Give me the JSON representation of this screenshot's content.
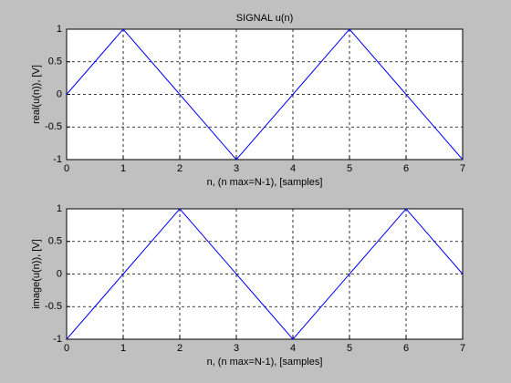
{
  "chart_data": [
    {
      "type": "line",
      "title": "SIGNAL u(n)",
      "x_label": "n, (n max=N-1), [samples]",
      "y_label": "real(u(n)), [V]",
      "x": [
        0,
        1,
        2,
        3,
        4,
        5,
        6,
        7
      ],
      "values": [
        0,
        1,
        0,
        -1,
        0,
        1,
        0,
        -1
      ],
      "color": "#0000ff",
      "xlim": [
        0,
        7
      ],
      "xticks": [
        0,
        1,
        2,
        3,
        4,
        5,
        6,
        7
      ],
      "ylim": [
        -1,
        1
      ],
      "yticks": [
        -1,
        -0.5,
        0,
        0.5,
        1
      ],
      "grid": true
    },
    {
      "type": "line",
      "x_label": "n, (n max=N-1), [samples]",
      "y_label": "image(u(n)), [V]",
      "x": [
        0,
        1,
        2,
        3,
        4,
        5,
        6,
        7
      ],
      "values": [
        -1,
        0,
        1,
        0,
        -1,
        0,
        1,
        0
      ],
      "color": "#0000ff",
      "xlim": [
        0,
        7
      ],
      "xticks": [
        0,
        1,
        2,
        3,
        4,
        5,
        6,
        7
      ],
      "ylim": [
        -1,
        1
      ],
      "yticks": [
        -1,
        -0.5,
        0,
        0.5,
        1
      ],
      "grid": true
    }
  ]
}
